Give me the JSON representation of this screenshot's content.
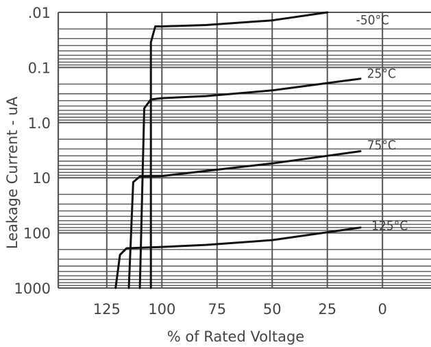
{
  "chart_data": {
    "type": "line",
    "xlabel": "% of Rated Voltage",
    "ylabel": "Leakage Current - uA",
    "x_ticks": [
      "125",
      "100",
      "75",
      "50",
      "25",
      "0"
    ],
    "x_tick_values": [
      125,
      100,
      75,
      50,
      25,
      0
    ],
    "xlim": [
      147,
      -22
    ],
    "x_reversed": true,
    "y_ticks": [
      ".01",
      "0.1",
      "1.0",
      "10",
      "100",
      "1000"
    ],
    "y_tick_values": [
      0.01,
      0.1,
      1,
      10,
      100,
      1000
    ],
    "ylim": [
      0.01,
      1000
    ],
    "y_scale": "log",
    "y_inverted": true,
    "grid": true,
    "series": [
      {
        "name": "-50°C",
        "x": [
          105,
          105,
          103,
          100,
          80,
          50,
          25
        ],
        "y": [
          1000,
          0.035,
          0.018,
          0.018,
          0.017,
          0.014,
          0.01
        ],
        "label_at": [
          12,
          0.014
        ]
      },
      {
        "name": "25°C",
        "x": [
          110,
          108,
          105,
          100,
          80,
          50,
          10
        ],
        "y": [
          1000,
          0.55,
          0.38,
          0.36,
          0.33,
          0.26,
          0.16
        ],
        "label_at": [
          7,
          0.13
        ]
      },
      {
        "name": "75°C",
        "x": [
          115,
          113,
          110,
          100,
          80,
          50,
          10
        ],
        "y": [
          1000,
          12,
          9.5,
          9.3,
          7.5,
          5.5,
          3.3
        ],
        "label_at": [
          7,
          2.6
        ]
      },
      {
        "name": "125°C",
        "x": [
          121,
          119,
          116,
          100,
          80,
          50,
          10
        ],
        "y": [
          1000,
          250,
          190,
          180,
          165,
          135,
          80
        ],
        "label_at": [
          5,
          75
        ]
      }
    ],
    "colors": {
      "grid": "#555555",
      "line": "#111111",
      "text": "#444444"
    }
  }
}
